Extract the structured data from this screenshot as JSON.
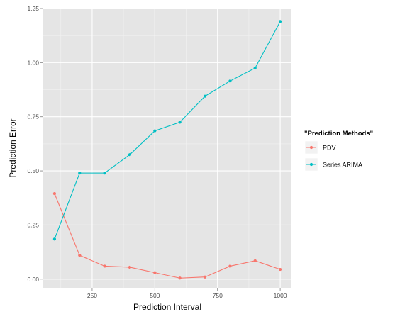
{
  "chart_data": {
    "type": "line",
    "title": "",
    "xlabel": "Prediction Interval",
    "ylabel": "Prediction Error",
    "xlim": [
      55,
      1045
    ],
    "ylim": [
      -0.04,
      1.25
    ],
    "x_ticks": [
      250,
      500,
      750,
      1000
    ],
    "x_tick_labels": [
      "250",
      "500",
      "750",
      "1000"
    ],
    "y_ticks": [
      0,
      0.25,
      0.5,
      0.75,
      1.0,
      1.25
    ],
    "y_tick_labels": [
      "0.00",
      "0.25",
      "0.50",
      "0.75",
      "1.00",
      "1.25"
    ],
    "grid": true,
    "legend": {
      "title": "\"Prediction Methods\"",
      "placement": "right"
    },
    "x": [
      100,
      200,
      300,
      400,
      500,
      600,
      700,
      800,
      900,
      1000
    ],
    "series": [
      {
        "name": "PDV",
        "color": "#F8766D",
        "values": [
          0.395,
          0.11,
          0.06,
          0.055,
          0.03,
          0.005,
          0.01,
          0.06,
          0.085,
          0.045
        ]
      },
      {
        "name": "Series ARIMA",
        "color": "#00BFC4",
        "values": [
          0.185,
          0.49,
          0.49,
          0.575,
          0.685,
          0.725,
          0.845,
          0.915,
          0.975,
          1.19
        ]
      }
    ]
  }
}
